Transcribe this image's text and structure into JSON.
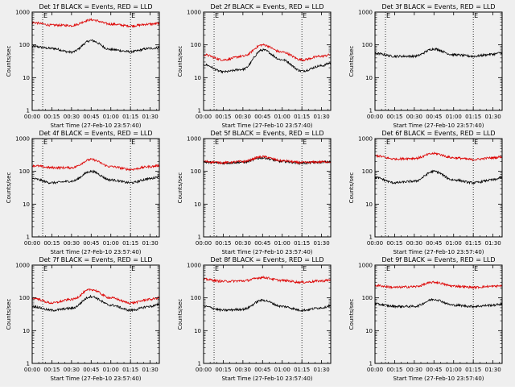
{
  "figure": {
    "x_ticklabels": [
      "00:00",
      "00:15",
      "00:30",
      "00:45",
      "01:00",
      "01:15",
      "01:30"
    ],
    "y_ticklabels": [
      "1",
      "10",
      "100",
      "1000"
    ],
    "xlabel": "Start Time (27-Feb-10 23:57:40)",
    "ylabel": "Counts/sec",
    "marker_label": "E",
    "colors": {
      "events": "#000000",
      "lld": "#dd0000",
      "background": "#efefef",
      "axes": "#000000"
    }
  },
  "chart_data": [
    {
      "type": "line",
      "title": "Det 1f BLACK = Events, RED = LLD",
      "xlabel": "Start Time (27-Feb-10 23:57:40)",
      "ylabel": "Counts/sec",
      "y_scale": "log",
      "ylim": [
        1,
        1000
      ],
      "xlim_minutes": [
        0,
        97
      ],
      "x_unit": "minutes since 00:00",
      "dotted_vlines_minutes": [
        8,
        75
      ],
      "vline_labels": [
        "E",
        "E"
      ],
      "x": [
        0,
        15,
        30,
        45,
        60,
        75,
        90,
        97
      ],
      "series": [
        {
          "color": "#000000",
          "values": [
            90,
            78,
            60,
            135,
            72,
            62,
            78,
            82
          ]
        },
        {
          "color": "#dd0000",
          "values": [
            480,
            400,
            390,
            580,
            430,
            380,
            430,
            450
          ]
        }
      ]
    },
    {
      "type": "line",
      "title": "Det 2f BLACK = Events, RED = LLD",
      "xlabel": "Start Time (27-Feb-10 23:57:40)",
      "ylabel": "Counts/sec",
      "y_scale": "log",
      "ylim": [
        1,
        1000
      ],
      "xlim_minutes": [
        0,
        97
      ],
      "x_unit": "minutes since 00:00",
      "dotted_vlines_minutes": [
        8,
        75
      ],
      "vline_labels": [
        "E",
        "E"
      ],
      "x": [
        0,
        15,
        30,
        45,
        60,
        75,
        90,
        97
      ],
      "series": [
        {
          "color": "#000000",
          "values": [
            25,
            15,
            18,
            70,
            35,
            16,
            23,
            28
          ]
        },
        {
          "color": "#dd0000",
          "values": [
            50,
            35,
            45,
            100,
            60,
            35,
            45,
            50
          ]
        }
      ]
    },
    {
      "type": "line",
      "title": "Det 3f BLACK = Events, RED = LLD",
      "xlabel": "Start Time (27-Feb-10 23:57:40)",
      "ylabel": "Counts/sec",
      "y_scale": "log",
      "ylim": [
        1,
        1000
      ],
      "xlim_minutes": [
        0,
        97
      ],
      "x_unit": "minutes since 00:00",
      "dotted_vlines_minutes": [
        8,
        75
      ],
      "vline_labels": [
        "E",
        "E"
      ],
      "x": [
        0,
        15,
        30,
        45,
        60,
        75,
        90,
        97
      ],
      "series": [
        {
          "color": "#000000",
          "values": [
            55,
            45,
            45,
            75,
            50,
            45,
            52,
            58
          ]
        }
      ]
    },
    {
      "type": "line",
      "title": "Det 4f BLACK = Events, RED = LLD",
      "xlabel": "Start Time (27-Feb-10 23:57:40)",
      "ylabel": "Counts/sec",
      "y_scale": "log",
      "ylim": [
        1,
        1000
      ],
      "xlim_minutes": [
        0,
        97
      ],
      "x_unit": "minutes since 00:00",
      "dotted_vlines_minutes": [
        8,
        75
      ],
      "vline_labels": [
        "E",
        "E"
      ],
      "x": [
        0,
        15,
        30,
        45,
        60,
        75,
        90,
        97
      ],
      "series": [
        {
          "color": "#000000",
          "values": [
            60,
            45,
            50,
            100,
            55,
            45,
            60,
            70
          ]
        },
        {
          "color": "#dd0000",
          "values": [
            150,
            130,
            130,
            230,
            140,
            115,
            140,
            150
          ]
        }
      ]
    },
    {
      "type": "line",
      "title": "Det 5f BLACK = Events, RED = LLD",
      "xlabel": "Start Time (27-Feb-10 23:57:40)",
      "ylabel": "Counts/sec",
      "y_scale": "log",
      "ylim": [
        1,
        1000
      ],
      "xlim_minutes": [
        0,
        97
      ],
      "x_unit": "minutes since 00:00",
      "dotted_vlines_minutes": [
        8,
        75
      ],
      "vline_labels": [
        "E",
        "E"
      ],
      "x": [
        0,
        15,
        30,
        45,
        60,
        75,
        90,
        97
      ],
      "series": [
        {
          "color": "#000000",
          "values": [
            190,
            180,
            190,
            260,
            200,
            180,
            190,
            195
          ]
        },
        {
          "color": "#dd0000",
          "values": [
            200,
            185,
            200,
            280,
            210,
            185,
            195,
            200
          ]
        }
      ]
    },
    {
      "type": "line",
      "title": "Det 6f BLACK = Events, RED = LLD",
      "xlabel": "Start Time (27-Feb-10 23:57:40)",
      "ylabel": "Counts/sec",
      "y_scale": "log",
      "ylim": [
        1,
        1000
      ],
      "xlim_minutes": [
        0,
        97
      ],
      "x_unit": "minutes since 00:00",
      "dotted_vlines_minutes": [
        8,
        75
      ],
      "vline_labels": [
        "E",
        "E"
      ],
      "x": [
        0,
        15,
        30,
        45,
        60,
        75,
        90,
        97
      ],
      "series": [
        {
          "color": "#000000",
          "values": [
            65,
            45,
            50,
            100,
            55,
            45,
            55,
            65
          ]
        },
        {
          "color": "#dd0000",
          "values": [
            300,
            240,
            250,
            350,
            260,
            230,
            260,
            280
          ]
        }
      ]
    },
    {
      "type": "line",
      "title": "Det 7f BLACK = Events, RED = LLD",
      "xlabel": "Start Time (27-Feb-10 23:57:40)",
      "ylabel": "Counts/sec",
      "y_scale": "log",
      "ylim": [
        1,
        1000
      ],
      "xlim_minutes": [
        0,
        97
      ],
      "x_unit": "minutes since 00:00",
      "dotted_vlines_minutes": [
        8,
        75
      ],
      "vline_labels": [
        "E",
        "E"
      ],
      "x": [
        0,
        15,
        30,
        45,
        60,
        75,
        90,
        97
      ],
      "series": [
        {
          "color": "#000000",
          "values": [
            55,
            42,
            48,
            110,
            60,
            42,
            55,
            62
          ]
        },
        {
          "color": "#dd0000",
          "values": [
            100,
            70,
            90,
            180,
            100,
            70,
            90,
            100
          ]
        }
      ]
    },
    {
      "type": "line",
      "title": "Det 8f BLACK = Events, RED = LLD",
      "xlabel": "Start Time (27-Feb-10 23:57:40)",
      "ylabel": "Counts/sec",
      "y_scale": "log",
      "ylim": [
        1,
        1000
      ],
      "xlim_minutes": [
        0,
        97
      ],
      "x_unit": "minutes since 00:00",
      "dotted_vlines_minutes": [
        8,
        75
      ],
      "vline_labels": [
        "E",
        "E"
      ],
      "x": [
        0,
        15,
        30,
        45,
        60,
        75,
        90,
        97
      ],
      "series": [
        {
          "color": "#000000",
          "values": [
            55,
            42,
            45,
            85,
            55,
            42,
            50,
            58
          ]
        },
        {
          "color": "#dd0000",
          "values": [
            370,
            320,
            330,
            420,
            340,
            300,
            330,
            350
          ]
        }
      ]
    },
    {
      "type": "line",
      "title": "Det 9f BLACK = Events, RED = LLD",
      "xlabel": "Start Time (27-Feb-10 23:57:40)",
      "ylabel": "Counts/sec",
      "y_scale": "log",
      "ylim": [
        1,
        1000
      ],
      "xlim_minutes": [
        0,
        97
      ],
      "x_unit": "minutes since 00:00",
      "dotted_vlines_minutes": [
        8,
        75
      ],
      "vline_labels": [
        "E",
        "E"
      ],
      "x": [
        0,
        15,
        30,
        45,
        60,
        75,
        90,
        97
      ],
      "series": [
        {
          "color": "#000000",
          "values": [
            65,
            55,
            55,
            90,
            60,
            55,
            60,
            65
          ]
        },
        {
          "color": "#dd0000",
          "values": [
            240,
            210,
            220,
            300,
            230,
            210,
            225,
            235
          ]
        }
      ]
    }
  ]
}
